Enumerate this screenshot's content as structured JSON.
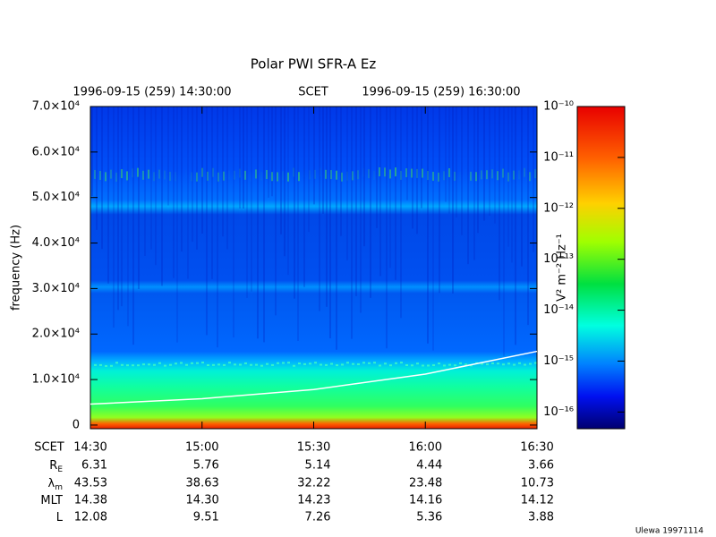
{
  "chart_data": {
    "type": "spectrogram",
    "title": "Polar PWI SFR-A Ez",
    "header": {
      "start": "1996-09-15 (259) 14:30:00",
      "center": "SCET",
      "end": "1996-09-15 (259) 16:30:00"
    },
    "y_label": "frequency (Hz)",
    "ylim": [
      -800,
      70000
    ],
    "yticks": [
      {
        "value": 0,
        "label": "0"
      },
      {
        "value": 10000,
        "label": "1.0×10⁴"
      },
      {
        "value": 20000,
        "label": "2.0×10⁴"
      },
      {
        "value": 30000,
        "label": "3.0×10⁴"
      },
      {
        "value": 40000,
        "label": "4.0×10⁴"
      },
      {
        "value": 50000,
        "label": "5.0×10⁴"
      },
      {
        "value": 60000,
        "label": "6.0×10⁴"
      },
      {
        "value": 70000,
        "label": "7.0×10⁴"
      }
    ],
    "xticks": [
      "14:30",
      "15:00",
      "15:30",
      "16:00",
      "16:30"
    ],
    "cyclotron_line": {
      "color": "#ffffff",
      "values": [
        4600,
        5800,
        7800,
        11200,
        16200
      ]
    },
    "colorbar": {
      "label": "V² m⁻² Hz⁻¹",
      "log": true,
      "lim": [
        4.7e-17,
        1e-10
      ],
      "ticks": [
        {
          "value": 1e-10,
          "label": "10⁻¹⁰"
        },
        {
          "value": 1e-11,
          "label": "10⁻¹¹"
        },
        {
          "value": 1e-12,
          "label": "10⁻¹²"
        },
        {
          "value": 1e-13,
          "label": "10⁻¹³"
        },
        {
          "value": 1e-14,
          "label": "10⁻¹⁴"
        },
        {
          "value": 1e-15,
          "label": "10⁻¹⁵"
        },
        {
          "value": 1e-16,
          "label": "10⁻¹⁶"
        }
      ]
    },
    "ephemeris": {
      "first_label": "SCET",
      "rows": [
        {
          "label": "R",
          "sub": "E",
          "values": [
            "6.31",
            "5.76",
            "5.14",
            "4.44",
            "3.66"
          ]
        },
        {
          "label": "λ",
          "sub": "m",
          "values": [
            "43.53",
            "38.63",
            "32.22",
            "23.48",
            "10.73"
          ]
        },
        {
          "label": "MLT",
          "values": [
            "14.38",
            "14.30",
            "14.23",
            "14.16",
            "14.12"
          ]
        },
        {
          "label": "L",
          "values": [
            "12.08",
            "9.51",
            "7.26",
            "5.36",
            "3.88"
          ]
        }
      ]
    },
    "footer": "Ulewa 19971114"
  }
}
